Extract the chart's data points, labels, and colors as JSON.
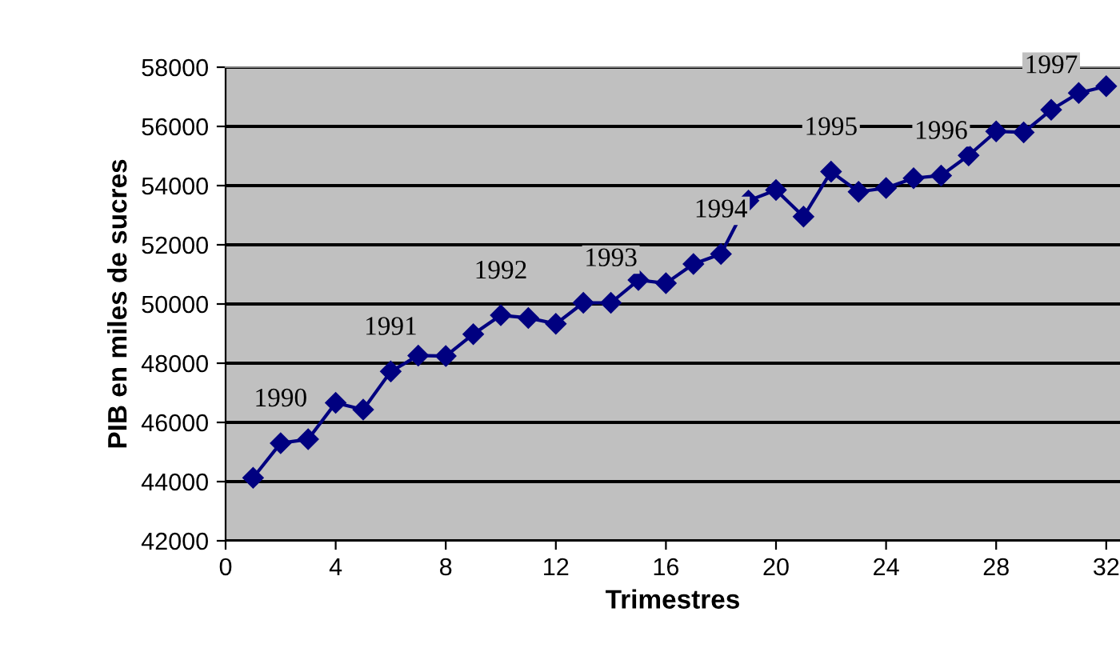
{
  "chart_data": {
    "type": "line",
    "xlabel": "Trimestres",
    "ylabel": "PIB en miles de sucres",
    "x": [
      1,
      2,
      3,
      4,
      5,
      6,
      7,
      8,
      9,
      10,
      11,
      12,
      13,
      14,
      15,
      16,
      17,
      18,
      19,
      20,
      21,
      22,
      23,
      24,
      25,
      26,
      27,
      28,
      29,
      30,
      31,
      32
    ],
    "series": [
      {
        "color": "#000080",
        "values": [
          44130,
          45300,
          45430,
          46660,
          46430,
          47720,
          48260,
          48240,
          48980,
          49620,
          49530,
          49330,
          50040,
          50040,
          50810,
          50700,
          51350,
          51690,
          53490,
          53850,
          52950,
          54470,
          53790,
          53920,
          54250,
          54340,
          55020,
          55830,
          55800,
          56560,
          57130,
          57360
        ]
      }
    ],
    "xlim": [
      0,
      32.5
    ],
    "xticks": [
      0,
      4,
      8,
      12,
      16,
      20,
      24,
      28,
      32
    ],
    "ylim": [
      42000,
      58000
    ],
    "yticks": [
      42000,
      44000,
      46000,
      48000,
      50000,
      52000,
      54000,
      56000,
      58000
    ],
    "grid": "y",
    "marker": "diamond",
    "line_style": "solid",
    "annotations": [
      "1990",
      "1991",
      "1992",
      "1993",
      "1994",
      "1995",
      "1996",
      "1997"
    ]
  }
}
